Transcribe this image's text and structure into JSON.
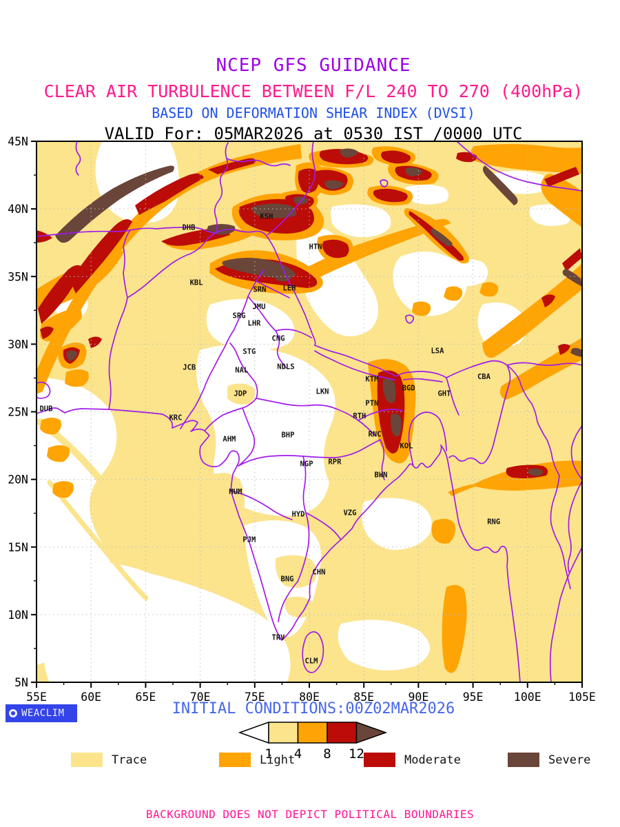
{
  "colors": {
    "trace": "#FBE48C",
    "light": "#FFA405",
    "moderate": "#BB0C08",
    "severe": "#6A4539",
    "boundary": "#A11AEA",
    "grid": "#BDBDBD",
    "title1": "#9D00E6",
    "title2": "#FF1A8C",
    "title3": "#2050E8",
    "title4": "#000000",
    "init": "#4666E8",
    "footer": "#FF1493",
    "logo_bg": "#3344E8",
    "logo_fg": "#F0F0FA"
  },
  "titles": {
    "line1": "NCEP GFS GUIDANCE",
    "line2": "CLEAR AIR TURBULENCE BETWEEN F/L 240 TO 270 (400hPa)",
    "line3": "BASED ON DEFORMATION SHEAR INDEX (DVSI)",
    "line4": "VALID For: 05MAR2026 at 0530 IST /0000 UTC"
  },
  "map": {
    "lon_min": 55,
    "lon_max": 105,
    "lat_min": 5,
    "lat_max": 45,
    "lat_ticks": [
      {
        "v": 45,
        "label": "45N"
      },
      {
        "v": 40,
        "label": "40N"
      },
      {
        "v": 35,
        "label": "35N"
      },
      {
        "v": 30,
        "label": "30N"
      },
      {
        "v": 25,
        "label": "25N"
      },
      {
        "v": 20,
        "label": "20N"
      },
      {
        "v": 15,
        "label": "15N"
      },
      {
        "v": 10,
        "label": "10N"
      },
      {
        "v": 5,
        "label": "5N"
      }
    ],
    "lon_ticks": [
      {
        "v": 55,
        "label": "55E"
      },
      {
        "v": 60,
        "label": "60E"
      },
      {
        "v": 65,
        "label": "65E"
      },
      {
        "v": 70,
        "label": "70E"
      },
      {
        "v": 75,
        "label": "75E"
      },
      {
        "v": 80,
        "label": "80E"
      },
      {
        "v": 85,
        "label": "85E"
      },
      {
        "v": 90,
        "label": "90E"
      },
      {
        "v": 95,
        "label": "95E"
      },
      {
        "v": 100,
        "label": "100E"
      },
      {
        "v": 105,
        "label": "105E"
      }
    ],
    "cities": [
      {
        "code": "DHB",
        "lon": 68.95,
        "lat": 38.63
      },
      {
        "code": "KSH",
        "lon": 76.08,
        "lat": 39.45
      },
      {
        "code": "HTN",
        "lon": 80.57,
        "lat": 37.2
      },
      {
        "code": "KBL",
        "lon": 69.65,
        "lat": 34.55
      },
      {
        "code": "SRN",
        "lon": 75.45,
        "lat": 34.04
      },
      {
        "code": "LEH",
        "lon": 78.17,
        "lat": 34.14
      },
      {
        "code": "JMU",
        "lon": 75.39,
        "lat": 32.77
      },
      {
        "code": "SRG",
        "lon": 73.56,
        "lat": 32.1
      },
      {
        "code": "LHR",
        "lon": 74.95,
        "lat": 31.55
      },
      {
        "code": "CNG",
        "lon": 77.16,
        "lat": 30.43
      },
      {
        "code": "STG",
        "lon": 74.5,
        "lat": 29.46
      },
      {
        "code": "JCB",
        "lon": 69.0,
        "lat": 28.29
      },
      {
        "code": "NAL",
        "lon": 73.8,
        "lat": 28.08
      },
      {
        "code": "NDLS",
        "lon": 77.85,
        "lat": 28.34
      },
      {
        "code": "JDP",
        "lon": 73.68,
        "lat": 26.35
      },
      {
        "code": "LKN",
        "lon": 81.2,
        "lat": 26.5
      },
      {
        "code": "KTM",
        "lon": 85.74,
        "lat": 27.42
      },
      {
        "code": "BGD",
        "lon": 89.1,
        "lat": 26.76
      },
      {
        "code": "LSA",
        "lon": 91.74,
        "lat": 29.5
      },
      {
        "code": "CBA",
        "lon": 96.0,
        "lat": 27.6
      },
      {
        "code": "GHT",
        "lon": 92.37,
        "lat": 26.35
      },
      {
        "code": "PTN",
        "lon": 85.74,
        "lat": 25.64
      },
      {
        "code": "RTH",
        "lon": 84.6,
        "lat": 24.7
      },
      {
        "code": "KRC",
        "lon": 67.75,
        "lat": 24.57
      },
      {
        "code": "RNC",
        "lon": 86.0,
        "lat": 23.35
      },
      {
        "code": "KOL",
        "lon": 88.9,
        "lat": 22.48
      },
      {
        "code": "BWN",
        "lon": 86.56,
        "lat": 20.34
      },
      {
        "code": "DUB",
        "lon": 55.88,
        "lat": 25.23
      },
      {
        "code": "AHM",
        "lon": 72.67,
        "lat": 23.0
      },
      {
        "code": "BHP",
        "lon": 78.04,
        "lat": 23.3
      },
      {
        "code": "NGP",
        "lon": 79.75,
        "lat": 21.15
      },
      {
        "code": "RPR",
        "lon": 82.33,
        "lat": 21.3
      },
      {
        "code": "MUM",
        "lon": 73.24,
        "lat": 19.1
      },
      {
        "code": "HYD",
        "lon": 78.99,
        "lat": 17.43
      },
      {
        "code": "VZG",
        "lon": 83.72,
        "lat": 17.53
      },
      {
        "code": "PJM",
        "lon": 74.5,
        "lat": 15.55
      },
      {
        "code": "CHN",
        "lon": 80.88,
        "lat": 13.15
      },
      {
        "code": "BNG",
        "lon": 77.98,
        "lat": 12.64
      },
      {
        "code": "TRV",
        "lon": 77.16,
        "lat": 8.3
      },
      {
        "code": "CLM",
        "lon": 80.19,
        "lat": 6.57
      },
      {
        "code": "RNG",
        "lon": 96.9,
        "lat": 16.87
      }
    ]
  },
  "colorbar": {
    "values": [
      "1",
      "4",
      "8",
      "12"
    ]
  },
  "legend": [
    {
      "label": "Trace",
      "color_key": "trace"
    },
    {
      "label": "Light",
      "color_key": "light"
    },
    {
      "label": "Moderate",
      "color_key": "moderate"
    },
    {
      "label": "Severe",
      "color_key": "severe"
    }
  ],
  "footer": {
    "logo": "WEACLIM",
    "initial_conditions": "INITIAL CONDITIONS:00Z02MAR2026",
    "disclaimer": "BACKGROUND DOES NOT DEPICT POLITICAL BOUNDARIES"
  },
  "chart_data": {
    "type": "heatmap",
    "title": "NCEP GFS GUIDANCE",
    "subtitle1": "CLEAR AIR TURBULENCE BETWEEN F/L 240 TO 270 (400hPa)",
    "subtitle2": "BASED ON DEFORMATION SHEAR INDEX (DVSI)",
    "valid": "VALID For: 05MAR2026 at 0530 IST /0000 UTC",
    "initial_conditions": "INITIAL CONDITIONS:00Z02MAR2026",
    "xlim": [
      55,
      105
    ],
    "ylim": [
      5,
      45
    ],
    "x_tick_labels": [
      "55E",
      "60E",
      "65E",
      "70E",
      "75E",
      "80E",
      "85E",
      "90E",
      "95E",
      "100E",
      "105E"
    ],
    "y_tick_labels": [
      "5N",
      "10N",
      "15N",
      "20N",
      "25N",
      "30N",
      "35N",
      "40N",
      "45N"
    ],
    "grid": true,
    "levels": [
      1,
      4,
      8,
      12
    ],
    "categories": [
      {
        "label": "Trace",
        "range": "1-4",
        "color": "#FBE48C"
      },
      {
        "label": "Light",
        "range": "4-8",
        "color": "#FFA405"
      },
      {
        "label": "Moderate",
        "range": "8-12",
        "color": "#BB0C08"
      },
      {
        "label": "Severe",
        "range": ">12",
        "color": "#6A4539"
      }
    ],
    "legend_position": "bottom",
    "stations": [
      "DHB",
      "KSH",
      "HTN",
      "KBL",
      "SRN",
      "LEH",
      "JMU",
      "SRG",
      "LHR",
      "CNG",
      "STG",
      "JCB",
      "NAL",
      "NDLS",
      "JDP",
      "LKN",
      "KTM",
      "BGD",
      "LSA",
      "CBA",
      "GHT",
      "PTN",
      "RTH",
      "KRC",
      "RNC",
      "KOL",
      "BWN",
      "DUB",
      "AHM",
      "BHP",
      "NGP",
      "RPR",
      "MUM",
      "HYD",
      "VZG",
      "PJM",
      "CHN",
      "BNG",
      "TRV",
      "CLM",
      "RNG"
    ]
  }
}
